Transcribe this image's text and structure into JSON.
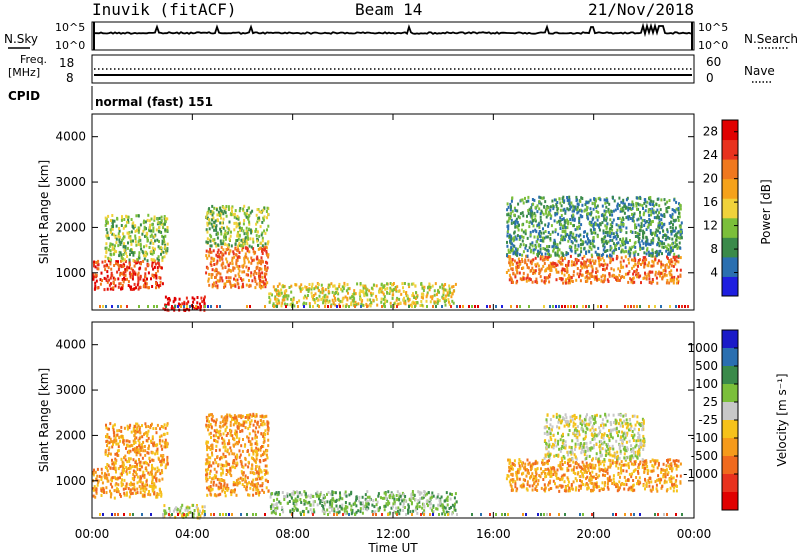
{
  "header": {
    "station": "Inuvik (fitACF)",
    "beam": "Beam 14",
    "date": "21/Nov/2018"
  },
  "nsky_panel": {
    "left_label": "N.Sky",
    "right_label": "N.Search",
    "left_ticks": [
      "10^5",
      "10^0"
    ],
    "right_ticks": [
      "10^5",
      "10^0"
    ]
  },
  "freq_panel": {
    "left_label_line1": "Freq.",
    "left_label_line2": "[MHz]",
    "right_label": "Nave",
    "left_ticks": [
      "18",
      "8"
    ],
    "right_ticks": [
      "60",
      "0"
    ]
  },
  "cpid_panel": {
    "label": "CPID",
    "mode_text": "normal (fast) 151"
  },
  "colors": {
    "power": [
      "#1f1fe0",
      "#2a6fb0",
      "#3a8a4a",
      "#7bbf3a",
      "#f0d23a",
      "#f5a21b",
      "#f0781e",
      "#e8321e",
      "#e00000"
    ],
    "velocity": [
      "#1a1ac8",
      "#2a6fb0",
      "#3a8a4a",
      "#7bbf3a",
      "#c8c8c8",
      "#f5c21b",
      "#f59a1b",
      "#f06a1e",
      "#e8321e",
      "#e00000"
    ],
    "ground_scatter": "#b4b4b4"
  },
  "chart_data": [
    {
      "type": "heatmap",
      "panel": "power",
      "xlabel": "",
      "ylabel": "Slant Range [km]",
      "x_ticks": [
        "00:00",
        "04:00",
        "08:00",
        "12:00",
        "16:00",
        "20:00",
        "00:00"
      ],
      "xlim_hours": [
        0,
        24
      ],
      "y_ticks": [
        1000,
        2000,
        3000,
        4000
      ],
      "ylim_km": [
        180,
        4500
      ],
      "colorbar": {
        "label": "Power [dB]",
        "ticks": [
          4,
          8,
          12,
          16,
          20,
          24,
          28
        ],
        "range": [
          0,
          30
        ]
      },
      "regions": [
        {
          "t0": 0.0,
          "t1": 2.8,
          "r_lo": 650,
          "r_hi": 1300,
          "power": 26
        },
        {
          "t0": 0.5,
          "t1": 3.0,
          "r_lo": 1300,
          "r_hi": 2300,
          "power": 10
        },
        {
          "t0": 2.8,
          "t1": 4.5,
          "r_lo": 200,
          "r_hi": 500,
          "power": 27
        },
        {
          "t0": 4.5,
          "t1": 7.0,
          "r_lo": 700,
          "r_hi": 1600,
          "power": 22
        },
        {
          "t0": 4.5,
          "t1": 7.0,
          "r_lo": 1600,
          "r_hi": 2500,
          "power": 12
        },
        {
          "t0": 7.0,
          "t1": 14.5,
          "r_lo": 300,
          "r_hi": 800,
          "power": 14
        },
        {
          "t0": 16.5,
          "t1": 23.5,
          "r_lo": 800,
          "r_hi": 1400,
          "power": 22
        },
        {
          "t0": 16.5,
          "t1": 23.5,
          "r_lo": 1400,
          "r_hi": 2700,
          "power": 8
        }
      ]
    },
    {
      "type": "heatmap",
      "panel": "velocity",
      "xlabel": "Time UT",
      "ylabel": "Slant Range [km]",
      "x_ticks": [
        "00:00",
        "04:00",
        "08:00",
        "12:00",
        "16:00",
        "20:00",
        "00:00"
      ],
      "xlim_hours": [
        0,
        24
      ],
      "y_ticks": [
        1000,
        2000,
        3000,
        4000
      ],
      "ylim_km": [
        180,
        4500
      ],
      "colorbar": {
        "label": "Velocity [m s⁻¹]",
        "ticks": [
          "1000",
          "500",
          "100",
          "25",
          "-25",
          "-100",
          "-500",
          "-1000"
        ]
      },
      "regions": [
        {
          "t0": 0.0,
          "t1": 2.8,
          "r_lo": 650,
          "r_hi": 1300,
          "velocity": -300
        },
        {
          "t0": 0.5,
          "t1": 3.0,
          "r_lo": 1300,
          "r_hi": 2300,
          "velocity": -150
        },
        {
          "t0": 2.8,
          "t1": 4.5,
          "r_lo": 200,
          "r_hi": 500,
          "velocity": -10
        },
        {
          "t0": 4.5,
          "t1": 7.0,
          "r_lo": 700,
          "r_hi": 2500,
          "velocity": -200
        },
        {
          "t0": 7.0,
          "t1": 14.5,
          "r_lo": 300,
          "r_hi": 800,
          "velocity": 80
        },
        {
          "t0": 16.5,
          "t1": 23.5,
          "r_lo": 800,
          "r_hi": 1500,
          "velocity": -250
        },
        {
          "t0": 18.0,
          "t1": 22.0,
          "r_lo": 1500,
          "r_hi": 2500,
          "velocity": 0
        }
      ]
    }
  ]
}
